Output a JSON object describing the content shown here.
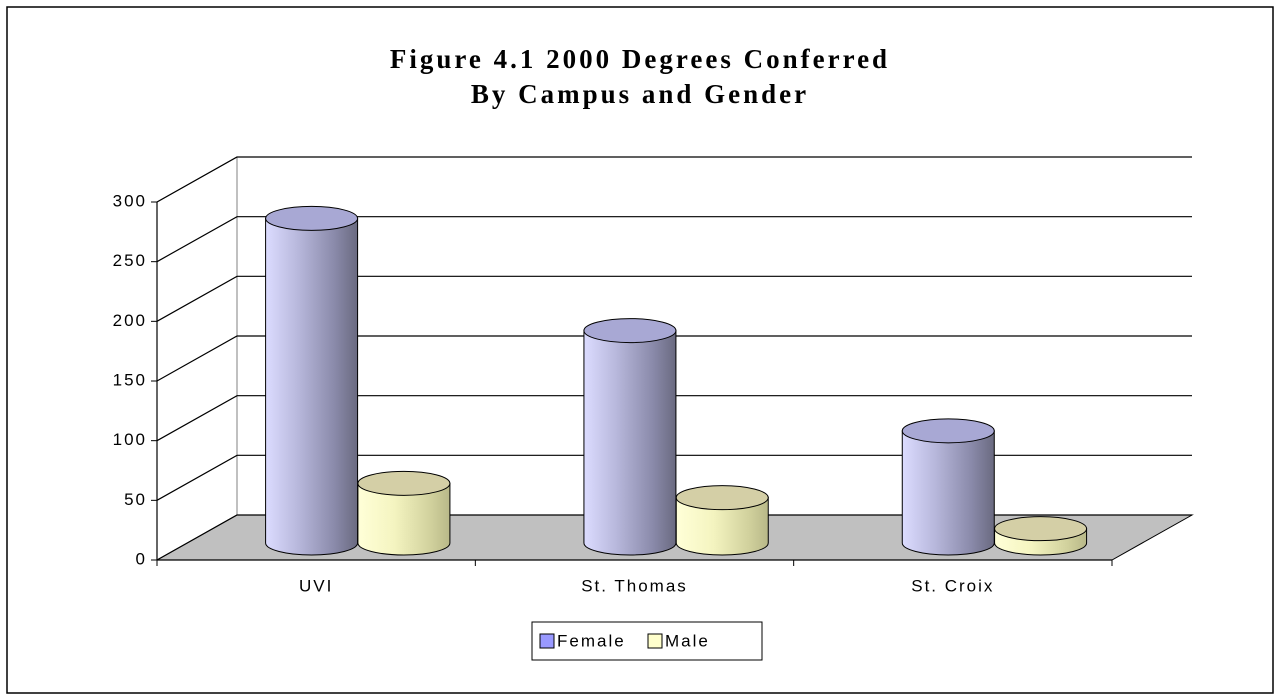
{
  "chart_data": {
    "type": "bar3d",
    "title": "Figure 4.1 2000 Degrees Conferred",
    "subtitle": "By Campus and Gender",
    "categories": [
      "UVI",
      "St. Thomas",
      "St. Croix"
    ],
    "series": [
      {
        "name": "Female",
        "color": "#9999ff",
        "values": [
          272,
          178,
          94
        ]
      },
      {
        "name": "Male",
        "color": "#ffffcc",
        "values": [
          50,
          38,
          12
        ]
      }
    ],
    "ylim": [
      0,
      300
    ],
    "yticks": [
      0,
      50,
      100,
      150,
      200,
      250,
      300
    ],
    "grid": true,
    "legend": "bottom"
  }
}
